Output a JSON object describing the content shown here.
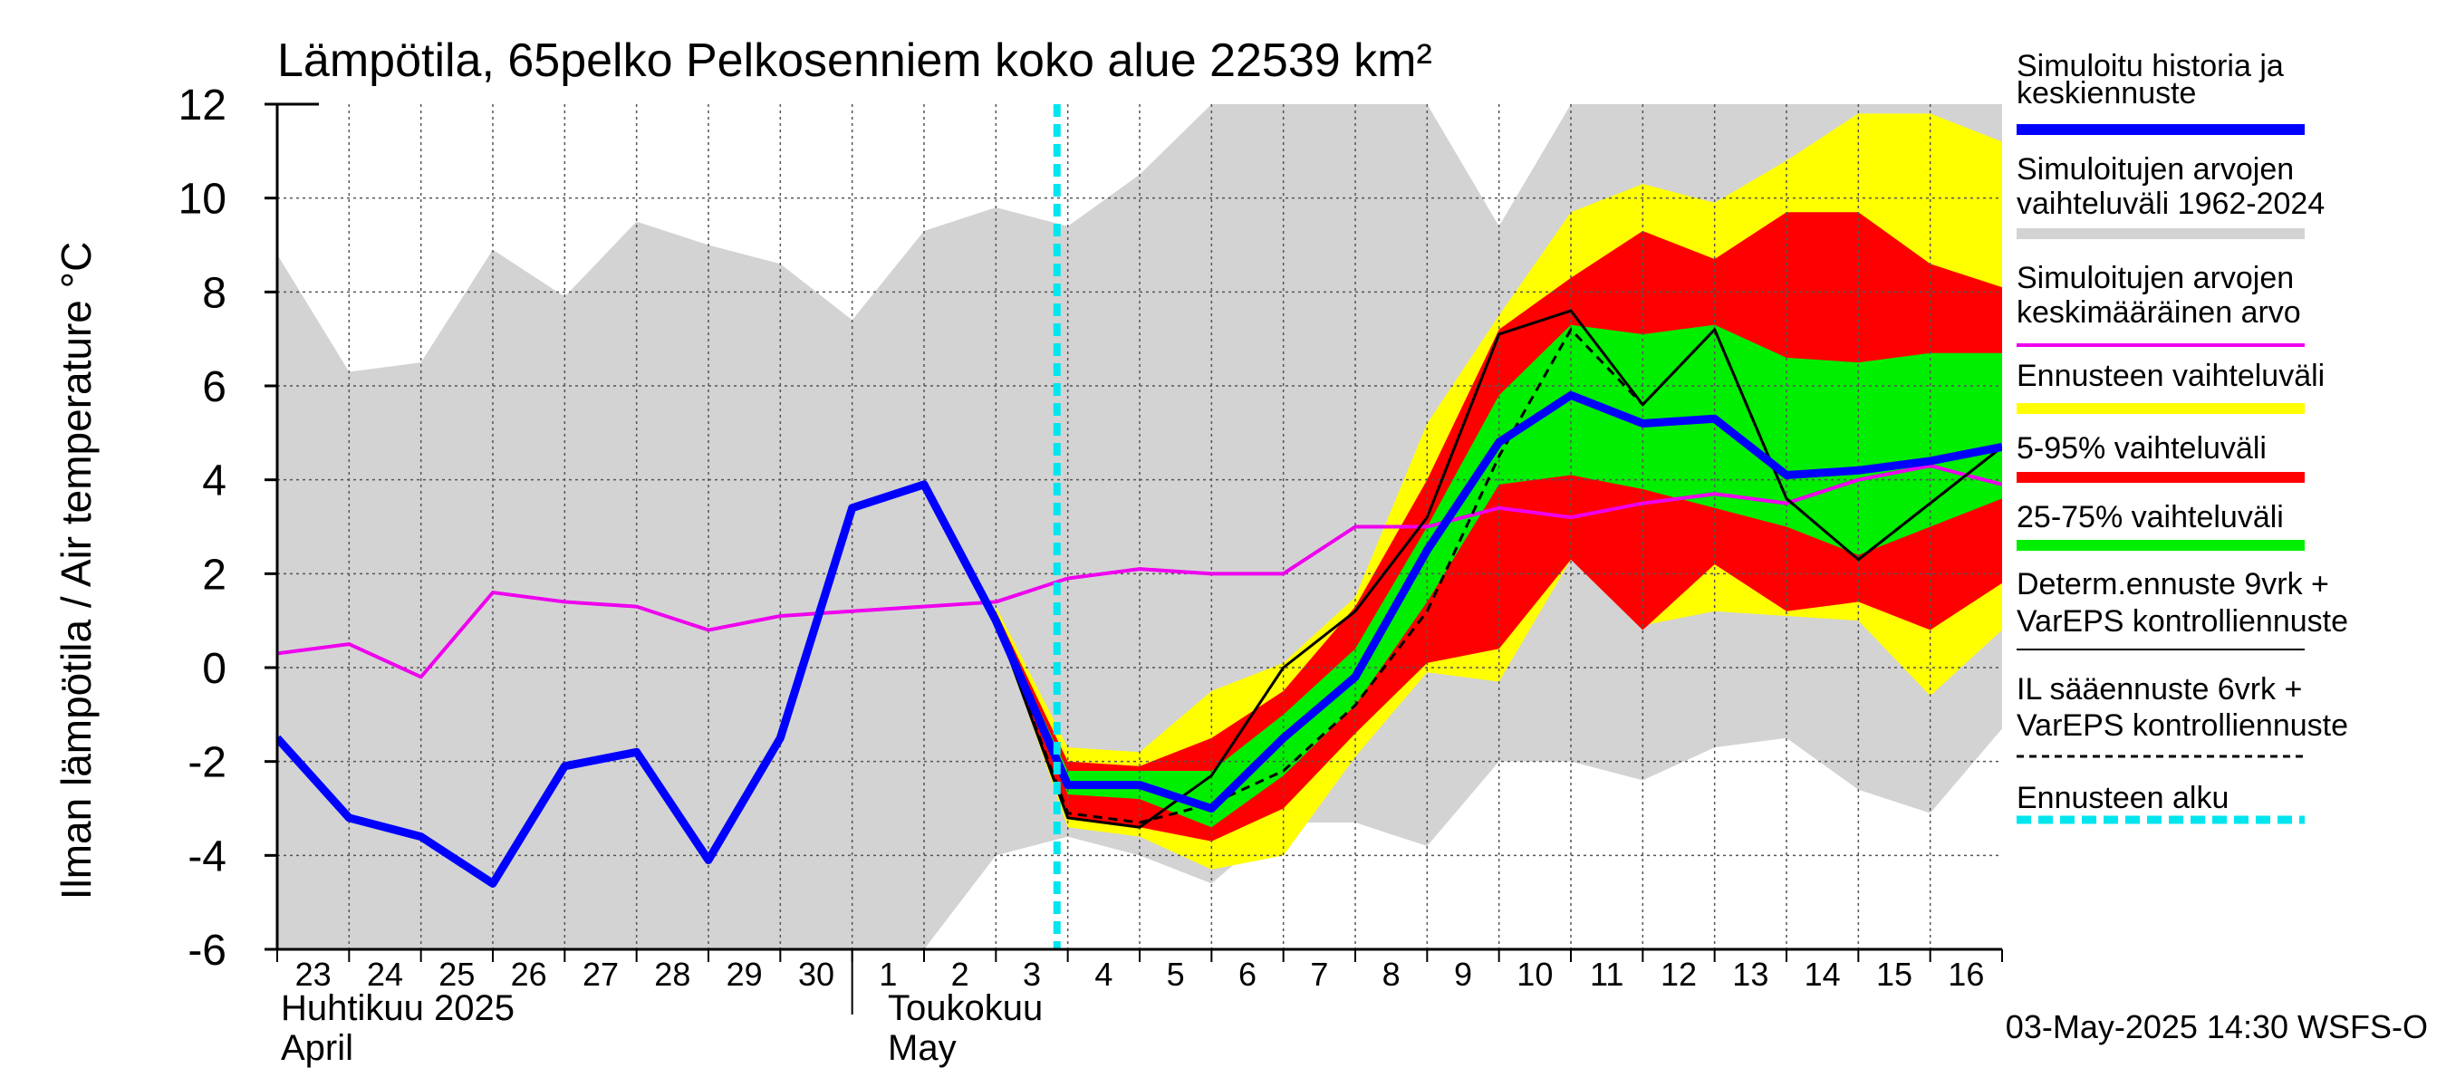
{
  "chart_data": {
    "type": "line",
    "title": "Lämpötila, 65pelko Pelkosenniem koko alue 22539 km²",
    "ylabel": "Ilman lämpötila / Air temperature   °C",
    "ylim": [
      -6,
      12
    ],
    "yticks": [
      12,
      10,
      8,
      6,
      4,
      2,
      0,
      -2,
      -4,
      -6
    ],
    "x_tick_labels": [
      "23",
      "24",
      "25",
      "26",
      "27",
      "28",
      "29",
      "30",
      "1",
      "2",
      "3",
      "4",
      "5",
      "6",
      "7",
      "8",
      "9",
      "10",
      "11",
      "12",
      "13",
      "14",
      "15",
      "16"
    ],
    "month_labels": [
      {
        "fi": "Huhtikuu  2025",
        "en": "April"
      },
      {
        "fi": "Toukokuu",
        "en": "May"
      }
    ],
    "footer": "03-May-2025 14:30 WSFS-O",
    "forecast_start_day": 10.85,
    "x_days": [
      0,
      1,
      2,
      3,
      4,
      5,
      6,
      7,
      8,
      9,
      10,
      11,
      12,
      13,
      14,
      15,
      16,
      17,
      18,
      19,
      20,
      21,
      22,
      23,
      24
    ],
    "series": [
      {
        "name": "Simuloitu historia ja keskiennuste",
        "color": "#0000ff",
        "x": [
          0,
          1,
          2,
          3,
          4,
          5,
          6,
          7,
          8,
          9,
          10,
          11,
          12,
          13,
          14,
          15,
          16,
          17,
          18,
          19,
          20,
          21,
          22,
          23,
          24
        ],
        "values": [
          -1.5,
          -3.2,
          -3.6,
          -4.6,
          -2.1,
          -1.8,
          -4.1,
          -1.5,
          3.4,
          3.9,
          1.0,
          -2.5,
          -2.5,
          -3.0,
          -1.5,
          -0.2,
          2.5,
          4.8,
          5.8,
          5.2,
          5.3,
          4.1,
          4.2,
          4.4,
          4.7
        ]
      },
      {
        "name": "Simuloitujen arvojen keskimääräinen arvo",
        "color": "#ee00ee",
        "x": [
          0,
          1,
          2,
          3,
          4,
          5,
          6,
          7,
          8,
          9,
          10,
          11,
          12,
          13,
          14,
          15,
          16,
          17,
          18,
          19,
          20,
          21,
          22,
          23,
          24
        ],
        "values": [
          0.3,
          0.5,
          -0.2,
          1.6,
          1.4,
          1.3,
          0.8,
          1.1,
          1.2,
          1.3,
          1.4,
          1.9,
          2.1,
          2.0,
          2.0,
          3.0,
          3.0,
          3.4,
          3.2,
          3.5,
          3.7,
          3.5,
          4.0,
          4.3,
          3.9
        ]
      },
      {
        "name": "Determ.ennuste 9vrk + VarEPS kontrolliennuste",
        "color": "#000000",
        "x": [
          10,
          11,
          12,
          13,
          14,
          15,
          16,
          17,
          18,
          19,
          20,
          21,
          22,
          23,
          24
        ],
        "values": [
          1.0,
          -3.2,
          -3.4,
          -2.3,
          0.0,
          1.2,
          3.2,
          7.1,
          7.6,
          5.6,
          7.2,
          3.6,
          2.3,
          3.5,
          4.7
        ]
      },
      {
        "name": "IL sääennuste 6vrk  +  VarEPS kontrolliennuste",
        "color": "#000000",
        "dashed": true,
        "x": [
          10,
          11,
          12,
          13,
          14,
          15,
          16,
          17,
          18,
          19,
          20,
          21,
          22,
          23,
          24
        ],
        "values": [
          1.0,
          -3.1,
          -3.3,
          -2.9,
          -2.2,
          -0.8,
          1.2,
          4.5,
          7.2,
          5.6,
          7.2,
          3.6,
          2.3,
          3.5,
          4.7
        ]
      }
    ],
    "bands": [
      {
        "name": "Simuloitujen arvojen vaihteluväli 1962-2024",
        "color": "#d3d3d3",
        "x": [
          0,
          1,
          2,
          3,
          4,
          5,
          6,
          7,
          8,
          9,
          10,
          11,
          12,
          13,
          14,
          15,
          16,
          17,
          18,
          19,
          20,
          21,
          22,
          23,
          24
        ],
        "upper": [
          8.8,
          6.3,
          6.5,
          8.9,
          7.9,
          9.5,
          9.0,
          8.6,
          7.4,
          9.3,
          9.8,
          9.4,
          10.5,
          12.0,
          12.0,
          12.0,
          12.0,
          9.4,
          12.0,
          12.0,
          12.0,
          12.0,
          12.0,
          12.0,
          12.0
        ],
        "lower": [
          -6.0,
          -6.0,
          -6.0,
          -6.0,
          -6.0,
          -6.0,
          -6.0,
          -6.0,
          -6.0,
          -6.0,
          -4.0,
          -3.6,
          -4.0,
          -4.6,
          -3.3,
          -3.3,
          -3.8,
          -2.0,
          -2.0,
          -2.4,
          -1.7,
          -1.5,
          -2.6,
          -3.1,
          -1.3
        ]
      },
      {
        "name": "Ennusteen vaihteluväli",
        "color": "#ffff00",
        "x": [
          10,
          11,
          12,
          13,
          14,
          15,
          16,
          17,
          18,
          19,
          20,
          21,
          22,
          23,
          24
        ],
        "upper": [
          1.3,
          -1.7,
          -1.8,
          -0.5,
          0.1,
          1.5,
          5.2,
          7.5,
          9.7,
          10.3,
          9.9,
          10.8,
          11.8,
          11.8,
          11.2
        ],
        "lower": [
          1.0,
          -3.4,
          -3.6,
          -4.3,
          -4.0,
          -1.9,
          -0.1,
          -0.3,
          2.3,
          0.9,
          1.2,
          1.1,
          1.0,
          -0.6,
          0.8
        ]
      },
      {
        "name": "5-95% vaihteluväli",
        "color": "#ff0000",
        "x": [
          10,
          11,
          12,
          13,
          14,
          15,
          16,
          17,
          18,
          19,
          20,
          21,
          22,
          23,
          24
        ],
        "upper": [
          1.2,
          -2.0,
          -2.1,
          -1.5,
          -0.5,
          1.3,
          4.0,
          7.2,
          8.3,
          9.3,
          8.7,
          9.7,
          9.7,
          8.6,
          8.1
        ],
        "lower": [
          1.0,
          -3.2,
          -3.4,
          -3.7,
          -3.0,
          -1.4,
          0.1,
          0.4,
          2.3,
          0.8,
          2.2,
          1.2,
          1.4,
          0.8,
          1.8
        ]
      },
      {
        "name": "25-75% vaihteluväli",
        "color": "#00ee00",
        "x": [
          10,
          11,
          12,
          13,
          14,
          15,
          16,
          17,
          18,
          19,
          20,
          21,
          22,
          23,
          24
        ],
        "upper": [
          1.1,
          -2.2,
          -2.2,
          -2.2,
          -1.0,
          0.4,
          3.0,
          5.8,
          7.3,
          7.1,
          7.3,
          6.6,
          6.5,
          6.7,
          6.7
        ],
        "lower": [
          1.0,
          -2.7,
          -2.8,
          -3.4,
          -2.3,
          -0.8,
          1.4,
          3.9,
          4.1,
          3.8,
          3.4,
          3.0,
          2.4,
          3.0,
          3.6
        ]
      }
    ],
    "legend": [
      {
        "lines": [
          "Simuloitu historia ja",
          "keskiennuste"
        ],
        "color": "#0000ff",
        "style": "thick"
      },
      {
        "lines": [
          "Simuloitujen arvojen",
          "vaihteluväli 1962-2024"
        ],
        "color": "#d3d3d3",
        "style": "thick"
      },
      {
        "lines": [
          "Simuloitujen arvojen",
          "keskimääräinen arvo"
        ],
        "color": "#ee00ee",
        "style": "medium"
      },
      {
        "lines": [
          "Ennusteen vaihteluväli"
        ],
        "color": "#ffff00",
        "style": "thick"
      },
      {
        "lines": [
          "5-95% vaihteluväli"
        ],
        "color": "#ff0000",
        "style": "thick"
      },
      {
        "lines": [
          "25-75% vaihteluväli"
        ],
        "color": "#00ee00",
        "style": "thick"
      },
      {
        "lines": [
          "Determ.ennuste 9vrk +",
          "VarEPS kontrolliennuste"
        ],
        "color": "#000000",
        "style": "thin"
      },
      {
        "lines": [
          "IL sääennuste 6vrk  +",
          "  VarEPS kontrolliennuste"
        ],
        "color": "#000000",
        "style": "dashed"
      },
      {
        "lines": [
          "Ennusteen alku"
        ],
        "color": "#00e5ee",
        "style": "cyan-dashed"
      }
    ],
    "grid": true
  }
}
